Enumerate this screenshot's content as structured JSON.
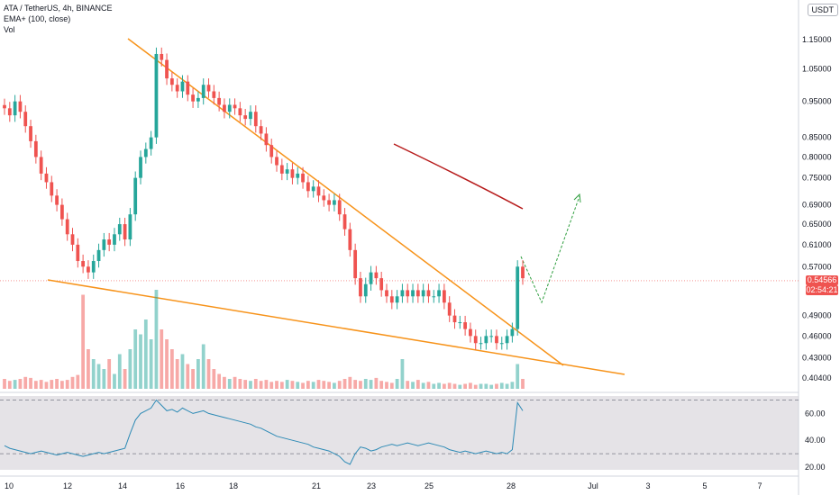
{
  "header": {
    "title": "ATA / TetherUS, 4h, BINANCE",
    "indicator1": "EMA+ (100, close)",
    "indicator2": "Vol"
  },
  "currency_button": "USDT",
  "last_price": {
    "value": "0.54566",
    "countdown": "02:54:21"
  },
  "colors": {
    "up": "#26a69a",
    "down": "#ef5350",
    "trendline": "#f7931a",
    "ema": "#b71c1c",
    "projection": "#2e9e3e",
    "rsi_line": "#2d8ab5",
    "rsi_bg": "#2a1b3d"
  },
  "chart_data": [
    {
      "type": "candlestick",
      "title": "ATA / TetherUS, 4h, BINANCE",
      "y_axis_labels": [
        "1.15000",
        "1.05000",
        "0.95000",
        "0.85000",
        "0.80000",
        "0.75000",
        "0.69000",
        "0.65000",
        "0.61000",
        "0.57000",
        "0.49000",
        "0.46000",
        "0.43000",
        "0.40400"
      ],
      "y_axis_values": [
        1.15,
        1.05,
        0.95,
        0.85,
        0.8,
        0.75,
        0.69,
        0.65,
        0.61,
        0.57,
        0.49,
        0.46,
        0.43,
        0.404
      ],
      "x_axis_labels": [
        "10",
        "12",
        "14",
        "16",
        "18",
        "21",
        "23",
        "25",
        "28",
        "Jul",
        "3",
        "5",
        "7"
      ],
      "scale": "log",
      "close_series": [
        0.93,
        0.91,
        0.95,
        0.92,
        0.88,
        0.84,
        0.8,
        0.76,
        0.74,
        0.71,
        0.69,
        0.66,
        0.63,
        0.61,
        0.58,
        0.57,
        0.56,
        0.58,
        0.6,
        0.62,
        0.61,
        0.63,
        0.65,
        0.62,
        0.67,
        0.75,
        0.8,
        0.82,
        0.85,
        1.1,
        1.08,
        1.02,
        1.0,
        0.98,
        1.01,
        0.97,
        0.95,
        0.96,
        1.0,
        0.98,
        0.96,
        0.94,
        0.92,
        0.94,
        0.93,
        0.91,
        0.9,
        0.92,
        0.88,
        0.86,
        0.83,
        0.8,
        0.78,
        0.76,
        0.77,
        0.75,
        0.76,
        0.74,
        0.72,
        0.73,
        0.71,
        0.7,
        0.69,
        0.7,
        0.67,
        0.64,
        0.6,
        0.55,
        0.52,
        0.54,
        0.56,
        0.55,
        0.53,
        0.52,
        0.51,
        0.52,
        0.53,
        0.52,
        0.53,
        0.52,
        0.53,
        0.52,
        0.52,
        0.53,
        0.51,
        0.49,
        0.48,
        0.48,
        0.47,
        0.46,
        0.45,
        0.45,
        0.46,
        0.46,
        0.45,
        0.45,
        0.46,
        0.47,
        0.57,
        0.55
      ],
      "volume_relative": [
        0.1,
        0.08,
        0.09,
        0.1,
        0.12,
        0.11,
        0.08,
        0.09,
        0.07,
        0.09,
        0.1,
        0.08,
        0.09,
        0.12,
        0.14,
        0.95,
        0.4,
        0.3,
        0.25,
        0.2,
        0.3,
        0.15,
        0.35,
        0.2,
        0.4,
        0.6,
        0.55,
        0.7,
        0.5,
        1.0,
        0.6,
        0.5,
        0.4,
        0.3,
        0.35,
        0.25,
        0.2,
        0.3,
        0.45,
        0.3,
        0.2,
        0.15,
        0.12,
        0.1,
        0.12,
        0.1,
        0.09,
        0.08,
        0.1,
        0.08,
        0.09,
        0.07,
        0.08,
        0.07,
        0.09,
        0.08,
        0.07,
        0.06,
        0.08,
        0.07,
        0.09,
        0.08,
        0.07,
        0.06,
        0.08,
        0.1,
        0.12,
        0.09,
        0.08,
        0.1,
        0.09,
        0.11,
        0.08,
        0.07,
        0.06,
        0.1,
        0.3,
        0.08,
        0.07,
        0.09,
        0.06,
        0.07,
        0.05,
        0.06,
        0.05,
        0.06,
        0.05,
        0.04,
        0.05,
        0.06,
        0.04,
        0.05,
        0.05,
        0.04,
        0.05,
        0.06,
        0.05,
        0.07,
        0.25,
        0.1
      ]
    },
    {
      "type": "line",
      "y_axis_labels": [
        "60.00",
        "40.00",
        "20.00"
      ],
      "ylim": [
        18,
        73
      ],
      "levels": [
        70,
        30
      ],
      "values": [
        36,
        34,
        33,
        32,
        31,
        30,
        31,
        32,
        31,
        30,
        29,
        30,
        31,
        30,
        29,
        28,
        29,
        30,
        31,
        30,
        31,
        32,
        33,
        34,
        45,
        55,
        60,
        62,
        64,
        70,
        66,
        62,
        63,
        61,
        64,
        62,
        60,
        61,
        62,
        60,
        59,
        58,
        57,
        56,
        55,
        54,
        53,
        52,
        50,
        49,
        47,
        45,
        43,
        42,
        41,
        40,
        39,
        38,
        37,
        35,
        34,
        33,
        32,
        30,
        28,
        24,
        22,
        30,
        35,
        34,
        32,
        33,
        35,
        36,
        37,
        36,
        37,
        38,
        37,
        36,
        37,
        38,
        37,
        36,
        35,
        33,
        32,
        31,
        32,
        31,
        30,
        31,
        32,
        31,
        30,
        31,
        30,
        33,
        68,
        62
      ]
    }
  ]
}
